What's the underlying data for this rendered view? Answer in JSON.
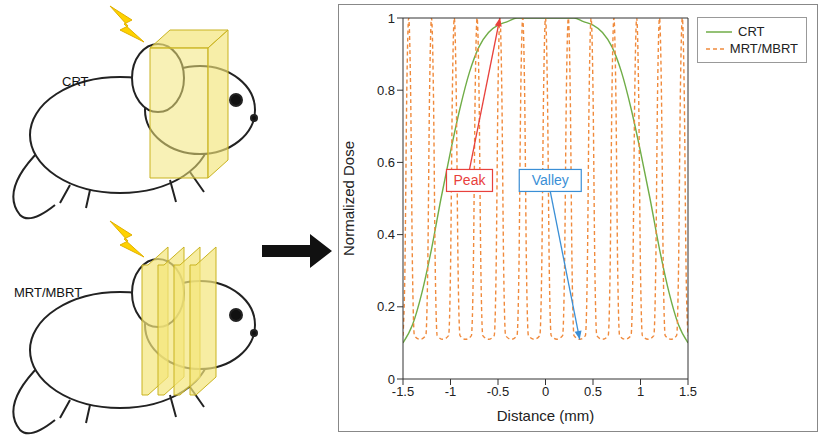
{
  "illustration": {
    "top_label": "CRT",
    "bottom_label": "MRT/MBRT"
  },
  "chart_data": {
    "type": "line",
    "xlabel": "Distance (mm)",
    "ylabel": "Normalized Dose",
    "xlim": [
      -1.5,
      1.5
    ],
    "xticks": [
      -1.5,
      -1,
      -0.5,
      0,
      0.5,
      1,
      1.5
    ],
    "ylim": [
      0,
      1
    ],
    "yticks": [
      0,
      0.2,
      0.4,
      0.6,
      0.8,
      1
    ],
    "grid": false,
    "legend": "right",
    "series": [
      {
        "name": "CRT",
        "color": "#70ad47",
        "line_style": "solid",
        "x": [
          -1.5,
          -1.4,
          -1.3,
          -1.2,
          -1.1,
          -1,
          -0.9,
          -0.8,
          -0.7,
          -0.6,
          -0.5,
          -0.4,
          -0.3,
          -0.2,
          -0.1,
          0,
          0.1,
          0.2,
          0.3,
          0.4,
          0.5,
          0.6,
          0.7,
          0.8,
          0.9,
          1,
          1.1,
          1.2,
          1.3,
          1.4,
          1.5
        ],
        "values": [
          0.1,
          0.15,
          0.24,
          0.36,
          0.5,
          0.63,
          0.75,
          0.85,
          0.92,
          0.96,
          0.98,
          0.99,
          1,
          1,
          1,
          1,
          1,
          1,
          1,
          0.99,
          0.98,
          0.96,
          0.92,
          0.85,
          0.75,
          0.63,
          0.5,
          0.36,
          0.24,
          0.15,
          0.1
        ]
      },
      {
        "name": "MRT/MBRT",
        "color": "#f08a3c",
        "line_style": "dashed",
        "x": [
          -1.5,
          -1.48,
          -1.46,
          -1.44,
          -1.42,
          -1.4,
          -1.38,
          -1.32,
          -1.26,
          -1.24,
          -1.22,
          -1.2,
          -1.18,
          -1.16,
          -1.14,
          -1.08,
          -1.02,
          -1,
          -0.98,
          -0.96,
          -0.94,
          -0.92,
          -0.9,
          -0.84,
          -0.78,
          -0.76,
          -0.74,
          -0.72,
          -0.7,
          -0.68,
          -0.66,
          -0.6,
          -0.54,
          -0.52,
          -0.5,
          -0.48,
          -0.46,
          -0.44,
          -0.42,
          -0.36,
          -0.3,
          -0.28,
          -0.26,
          -0.24,
          -0.22,
          -0.2,
          -0.18,
          -0.12,
          -0.06,
          -0.04,
          -0.02,
          0,
          0.02,
          0.04,
          0.06,
          0.12,
          0.18,
          0.2,
          0.22,
          0.24,
          0.26,
          0.28,
          0.3,
          0.36,
          0.42,
          0.44,
          0.46,
          0.48,
          0.5,
          0.52,
          0.54,
          0.6,
          0.66,
          0.68,
          0.7,
          0.72,
          0.74,
          0.76,
          0.78,
          0.84,
          0.9,
          0.92,
          0.94,
          0.96,
          0.98,
          1,
          1.02,
          1.08,
          1.14,
          1.16,
          1.18,
          1.2,
          1.22,
          1.24,
          1.26,
          1.32,
          1.38,
          1.4,
          1.42,
          1.44,
          1.46,
          1.48,
          1.5
        ],
        "values": [
          0.12,
          0.3,
          0.8,
          1,
          0.8,
          0.3,
          0.12,
          0.11,
          0.12,
          0.3,
          0.8,
          1,
          0.8,
          0.3,
          0.12,
          0.11,
          0.12,
          0.3,
          0.8,
          1,
          0.8,
          0.3,
          0.12,
          0.11,
          0.12,
          0.3,
          0.8,
          1,
          0.8,
          0.3,
          0.12,
          0.11,
          0.12,
          0.3,
          0.8,
          1,
          0.8,
          0.3,
          0.12,
          0.11,
          0.12,
          0.3,
          0.8,
          1,
          0.8,
          0.3,
          0.12,
          0.11,
          0.12,
          0.3,
          0.8,
          1,
          0.8,
          0.3,
          0.12,
          0.11,
          0.12,
          0.3,
          0.8,
          1,
          0.8,
          0.3,
          0.12,
          0.11,
          0.12,
          0.3,
          0.8,
          1,
          0.8,
          0.3,
          0.12,
          0.11,
          0.12,
          0.3,
          0.8,
          1,
          0.8,
          0.3,
          0.12,
          0.11,
          0.12,
          0.3,
          0.8,
          1,
          0.8,
          0.3,
          0.12,
          0.11,
          0.12,
          0.3,
          0.8,
          1,
          0.8,
          0.3,
          0.12,
          0.11,
          0.12,
          0.3,
          0.8,
          1,
          0.8,
          0.3,
          0.12
        ]
      }
    ],
    "annotations": [
      {
        "text": "Peak",
        "x": -0.8,
        "y": 0.55,
        "target_x": -0.48,
        "target_y": 1,
        "color": "#e8413c"
      },
      {
        "text": "Valley",
        "x": 0.05,
        "y": 0.55,
        "target_x": 0.36,
        "target_y": 0.11,
        "color": "#3a8fd6"
      }
    ]
  }
}
